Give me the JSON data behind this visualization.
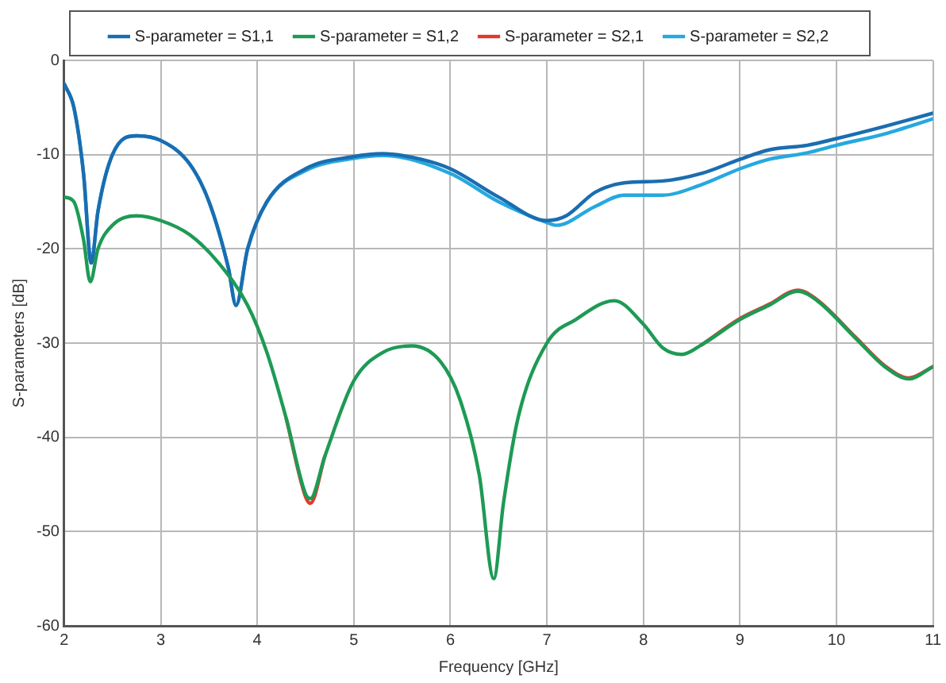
{
  "chart_data": {
    "type": "line",
    "xlabel": "Frequency [GHz]",
    "ylabel": "S-parameters [dB]",
    "xlim": [
      2,
      11
    ],
    "xticks": [
      2,
      3,
      4,
      5,
      6,
      7,
      8,
      9,
      10,
      11
    ],
    "ylim": [
      -60,
      0
    ],
    "yticks": [
      -60,
      -50,
      -40,
      -30,
      -20,
      -10,
      0
    ],
    "grid": true,
    "legend": "top",
    "marker": "none",
    "line_style": "solid",
    "series": [
      {
        "name": "S-parameter = S1,1",
        "color": "#1a6db0",
        "x": [
          2,
          2.1,
          2.2,
          2.28,
          2.35,
          2.5,
          2.75,
          3.0,
          3.3,
          3.5,
          3.7,
          3.78,
          3.9,
          4.1,
          4.5,
          5.0,
          5.3,
          5.7,
          6.0,
          6.5,
          7.0,
          7.2,
          7.5,
          7.8,
          8.2,
          8.6,
          9.0,
          9.3,
          9.7,
          10.0,
          10.5,
          11
        ],
        "values": [
          -2.5,
          -5,
          -12,
          -21.5,
          -16,
          -10,
          -8,
          -8.5,
          -11,
          -15,
          -22,
          -26,
          -20,
          -15,
          -11.5,
          -10.2,
          -9.9,
          -10.5,
          -11.5,
          -14.5,
          -17,
          -16.5,
          -14,
          -13,
          -12.8,
          -12,
          -10.5,
          -9.5,
          -9,
          -8.3,
          -7,
          -5.6
        ]
      },
      {
        "name": "S-parameter = S1,2",
        "color": "#1e9a55",
        "x": [
          2,
          2.1,
          2.2,
          2.27,
          2.35,
          2.5,
          2.75,
          3.0,
          3.3,
          3.6,
          3.9,
          4.1,
          4.3,
          4.5,
          4.55,
          4.7,
          5.0,
          5.3,
          5.6,
          5.9,
          6.1,
          6.3,
          6.45,
          6.55,
          6.7,
          7.0,
          7.3,
          7.7,
          8.0,
          8.2,
          8.4,
          8.6,
          9.0,
          9.3,
          9.6,
          9.8,
          10.2,
          10.5,
          10.75,
          11
        ],
        "values": [
          -14.5,
          -15,
          -19,
          -23.5,
          -20,
          -17.5,
          -16.5,
          -17,
          -18.5,
          -21.5,
          -26,
          -31,
          -38,
          -46,
          -46.5,
          -42,
          -34,
          -31,
          -30.3,
          -32,
          -36,
          -44,
          -55,
          -47,
          -38,
          -30,
          -27.5,
          -25.5,
          -28,
          -30.5,
          -31.2,
          -30.2,
          -27.5,
          -26,
          -24.5,
          -25.5,
          -29.5,
          -32.5,
          -33.8,
          -32.5
        ]
      },
      {
        "name": "S-parameter = S2,1",
        "color": "#e03a2e",
        "x": [
          4.3,
          4.5,
          4.55,
          4.7,
          6.0,
          8.6,
          9.0,
          9.3,
          9.6,
          9.8,
          10.2,
          10.5,
          10.75,
          11
        ],
        "values": [
          -38,
          -46.3,
          -47,
          -42,
          null,
          -30.2,
          -27.4,
          -25.9,
          -24.4,
          -25.4,
          -29.4,
          -32.4,
          -33.7,
          -32.5
        ]
      },
      {
        "name": "S-parameter = S2,2",
        "color": "#26a8e0",
        "x": [
          2,
          2.1,
          2.2,
          2.28,
          2.35,
          2.5,
          2.75,
          3.0,
          3.3,
          3.5,
          3.7,
          3.78,
          3.9,
          4.1,
          4.5,
          5.0,
          5.3,
          6.0,
          6.5,
          7.0,
          7.1,
          7.5,
          7.8,
          8.2,
          8.6,
          9.0,
          9.3,
          9.7,
          10.0,
          10.5,
          11
        ],
        "values": [
          -2.5,
          -5,
          -12,
          -21.5,
          -16,
          -10,
          -8,
          -8.5,
          -11,
          -15,
          -22,
          -26,
          -20,
          -15,
          -11.7,
          -10.4,
          -10.1,
          -12,
          -15,
          -17.2,
          -17.5,
          -15.5,
          -14.3,
          -14.3,
          -13.2,
          -11.5,
          -10.5,
          -9.8,
          -9,
          -7.8,
          -6.2
        ]
      }
    ]
  }
}
